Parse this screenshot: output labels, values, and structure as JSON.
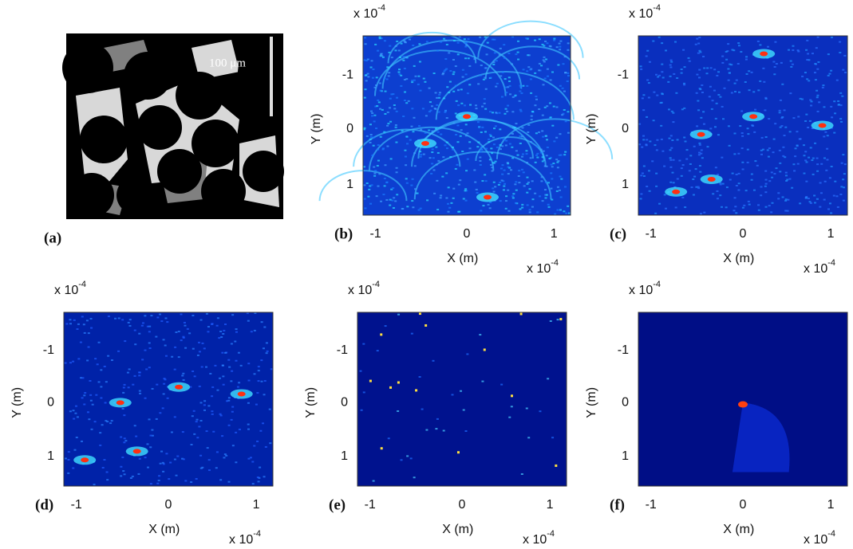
{
  "figure": {
    "panel_a": {
      "label": "(a)",
      "scale_bar": "100 μm"
    },
    "plots": [
      {
        "label": "(b)",
        "multiplier": "x 10",
        "exponent": "-4",
        "x_multiplier": "x 10",
        "x_exponent": "-4",
        "x_label": "X (m)",
        "y_label": "Y (m)",
        "x_ticks": [
          "-1",
          "0",
          "1"
        ],
        "y_ticks": [
          "-1",
          "0",
          "1"
        ]
      },
      {
        "label": "(c)",
        "multiplier": "x 10",
        "exponent": "-4",
        "x_multiplier": "x 10",
        "x_exponent": "-4",
        "x_label": "X (m)",
        "y_label": "Y (m)",
        "x_ticks": [
          "-1",
          "0",
          "1"
        ],
        "y_ticks": [
          "-1",
          "0",
          "1"
        ]
      },
      {
        "label": "(d)",
        "multiplier": "x 10",
        "exponent": "-4",
        "x_multiplier": "x 10",
        "x_exponent": "-4",
        "x_label": "X (m)",
        "y_label": "Y (m)",
        "x_ticks": [
          "-1",
          "0",
          "1"
        ],
        "y_ticks": [
          "-1",
          "0",
          "1"
        ]
      },
      {
        "label": "(e)",
        "multiplier": "x 10",
        "exponent": "-4",
        "x_multiplier": "x 10",
        "x_exponent": "-4",
        "x_label": "X (m)",
        "y_label": "Y (m)",
        "x_ticks": [
          "-1",
          "0",
          "1"
        ],
        "y_ticks": [
          "-1",
          "0",
          "1"
        ]
      },
      {
        "label": "(f)",
        "multiplier": "x 10",
        "exponent": "-4",
        "x_multiplier": "x 10",
        "x_exponent": "-4",
        "x_label": "X (m)",
        "y_label": "Y (m)",
        "x_ticks": [
          "-1",
          "0",
          "1"
        ],
        "y_ticks": [
          "-1",
          "0",
          "1"
        ]
      }
    ]
  }
}
